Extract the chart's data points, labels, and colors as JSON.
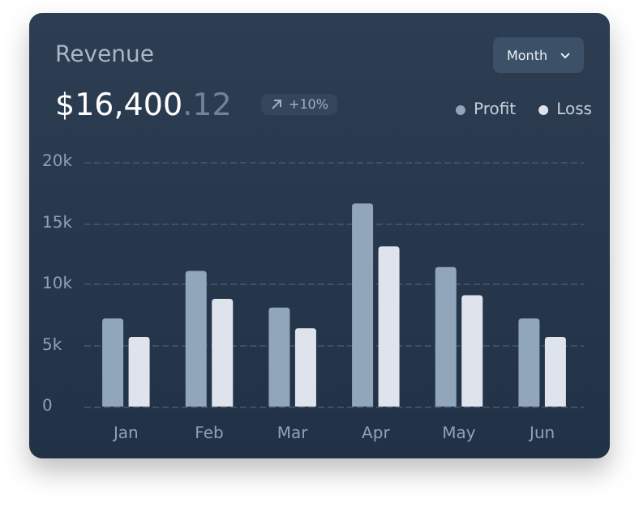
{
  "chart_data": {
    "type": "bar",
    "title": "Revenue",
    "subtitle": "$16,400.12",
    "annotations": [
      "+10%",
      "Month"
    ],
    "categories": [
      "Jan",
      "Feb",
      "Mar",
      "Apr",
      "May",
      "Jun"
    ],
    "series": [
      {
        "name": "Profit",
        "color": "#91a6bb",
        "values": [
          7.2,
          11.1,
          8.1,
          16.6,
          11.4,
          7.2
        ]
      },
      {
        "name": "Loss",
        "color": "#dfe4ec",
        "values": [
          5.7,
          8.8,
          6.4,
          13.1,
          9.1,
          5.7
        ]
      }
    ],
    "ylim": [
      0,
      20
    ],
    "yticks": [
      0,
      {
        "value": 5,
        "label": "5k"
      },
      {
        "value": 10,
        "label": "10k"
      },
      {
        "value": 15,
        "label": "15k"
      },
      {
        "value": 20,
        "label": "20k"
      }
    ],
    "grid": "y",
    "legend": "top right"
  }
}
